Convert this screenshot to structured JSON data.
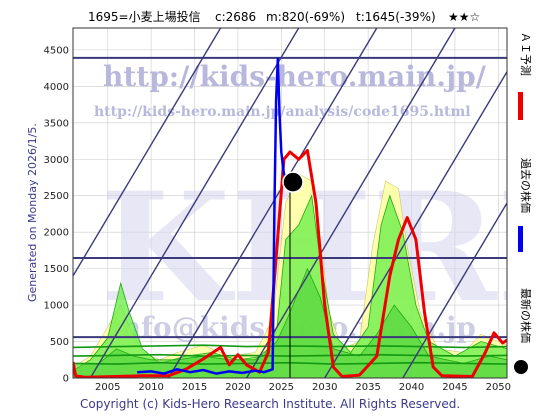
{
  "header": {
    "title": "1695=小麦上場投信",
    "current_price": "c:2686",
    "middle": "m:820(-69%)",
    "target": "t:1645(-39%)",
    "rating": "★★☆"
  },
  "side_note": "Generated on Monday 2026/1/5.",
  "footer": "Copyright (c) Kids-Hero Research Institute. All Rights Reserved.",
  "watermark": {
    "url": "http://kids-hero.main.jp/",
    "path": "http://kids-hero.main.jp/analysis/code1695.html",
    "big": "KHRI",
    "mail": "info@kids-hero.main.jp"
  },
  "legend": [
    {
      "label": "ＡＩ予測",
      "color": "#ee0000",
      "icon": "red-line-icon"
    },
    {
      "label": "過去の株価",
      "color": "#0000ee",
      "icon": "blue-line-icon"
    },
    {
      "label": "最新の株価",
      "color": "#000000",
      "icon": "black-dot-icon"
    }
  ],
  "colors": {
    "frame": "#333333",
    "forecast": "#ee0000",
    "history": "#0000ee",
    "diagonal": "#3a3a7a",
    "level_line": "#3a3a7a",
    "yellow_fill": "#ffffa0",
    "green_fill": "#66ee44",
    "green_line": "#22aa11"
  },
  "chart_data": {
    "type": "line",
    "title": "",
    "xlabel": "",
    "ylabel": "",
    "xlim": [
      2001,
      2051
    ],
    "ylim": [
      0,
      4800
    ],
    "x_ticks": [
      "2005",
      "2010",
      "2015",
      "2020",
      "2025",
      "2030",
      "2035",
      "2040",
      "2045",
      "2050"
    ],
    "y_ticks": [
      "0",
      "500",
      "1000",
      "1500",
      "2000",
      "2500",
      "3000",
      "3500",
      "4000",
      "4500"
    ],
    "horizontal_levels": [
      4390,
      1645,
      560
    ],
    "latest_point": {
      "x": 2026.0,
      "y": 2686
    },
    "vertical_marker_x": 2026.0,
    "diagonal_lines_x0": [
      1994,
      2003,
      2012,
      2021,
      2030,
      2039
    ],
    "series": [
      {
        "name": "過去の株価",
        "points": [
          [
            2008.4,
            80
          ],
          [
            2010,
            90
          ],
          [
            2011.5,
            60
          ],
          [
            2013,
            120
          ],
          [
            2014.5,
            80
          ],
          [
            2016,
            110
          ],
          [
            2017.5,
            60
          ],
          [
            2019,
            90
          ],
          [
            2020.5,
            70
          ],
          [
            2022,
            100
          ],
          [
            2023,
            80
          ],
          [
            2024.0,
            120
          ],
          [
            2024.2,
            2300
          ],
          [
            2024.4,
            3800
          ],
          [
            2024.6,
            4380
          ],
          [
            2024.8,
            3600
          ],
          [
            2025.0,
            3100
          ],
          [
            2025.3,
            2800
          ],
          [
            2025.6,
            2750
          ],
          [
            2026.0,
            2686
          ]
        ]
      },
      {
        "name": "ＡＩ予測",
        "points": [
          [
            2001,
            220
          ],
          [
            2001.3,
            30
          ],
          [
            2002.5,
            10
          ],
          [
            2006,
            20
          ],
          [
            2009,
            30
          ],
          [
            2012,
            30
          ],
          [
            2014,
            120
          ],
          [
            2016,
            260
          ],
          [
            2018,
            420
          ],
          [
            2019,
            180
          ],
          [
            2020,
            320
          ],
          [
            2021,
            180
          ],
          [
            2022.5,
            80
          ],
          [
            2023.5,
            350
          ],
          [
            2024.5,
            1800
          ],
          [
            2025.3,
            3000
          ],
          [
            2026.0,
            3100
          ],
          [
            2027,
            3000
          ],
          [
            2028,
            3120
          ],
          [
            2029,
            2400
          ],
          [
            2030,
            1000
          ],
          [
            2031,
            150
          ],
          [
            2032,
            20
          ],
          [
            2034,
            40
          ],
          [
            2036,
            300
          ],
          [
            2037.5,
            1400
          ],
          [
            2038.5,
            1900
          ],
          [
            2039.5,
            2200
          ],
          [
            2040.5,
            1900
          ],
          [
            2041.5,
            900
          ],
          [
            2042.5,
            150
          ],
          [
            2043.5,
            30
          ],
          [
            2047,
            20
          ],
          [
            2048.5,
            350
          ],
          [
            2049.5,
            620
          ],
          [
            2050.5,
            480
          ],
          [
            2051,
            520
          ]
        ]
      },
      {
        "name": "",
        "points": [
          [
            2001,
            150
          ],
          [
            2003,
            300
          ],
          [
            2005,
            700
          ],
          [
            2006.5,
            1000
          ],
          [
            2007.5,
            700
          ],
          [
            2009,
            350
          ],
          [
            2011,
            250
          ],
          [
            2013,
            350
          ],
          [
            2016,
            450
          ],
          [
            2019,
            300
          ],
          [
            2022,
            350
          ],
          [
            2024,
            800
          ],
          [
            2025.5,
            2400
          ],
          [
            2027,
            2800
          ],
          [
            2028.5,
            2700
          ],
          [
            2029.5,
            1900
          ],
          [
            2030.5,
            900
          ],
          [
            2032,
            400
          ],
          [
            2034,
            500
          ],
          [
            2035.5,
            1800
          ],
          [
            2037,
            2700
          ],
          [
            2038.5,
            2600
          ],
          [
            2039.5,
            1800
          ],
          [
            2041,
            900
          ],
          [
            2043,
            400
          ],
          [
            2046,
            350
          ],
          [
            2048,
            600
          ],
          [
            2050,
            500
          ],
          [
            2051,
            450
          ]
        ]
      },
      {
        "name": "",
        "points": [
          [
            2001,
            100
          ],
          [
            2003,
            250
          ],
          [
            2005,
            550
          ],
          [
            2006.5,
            1300
          ],
          [
            2007.5,
            900
          ],
          [
            2009,
            400
          ],
          [
            2011,
            200
          ],
          [
            2014,
            300
          ],
          [
            2017,
            350
          ],
          [
            2020,
            250
          ],
          [
            2023,
            300
          ],
          [
            2024.5,
            700
          ],
          [
            2025.5,
            1900
          ],
          [
            2027,
            2100
          ],
          [
            2028.5,
            2500
          ],
          [
            2029.5,
            1600
          ],
          [
            2031,
            600
          ],
          [
            2033,
            350
          ],
          [
            2035,
            700
          ],
          [
            2036.5,
            2100
          ],
          [
            2037.5,
            2500
          ],
          [
            2039,
            2000
          ],
          [
            2040.5,
            1000
          ],
          [
            2042,
            500
          ],
          [
            2045,
            300
          ],
          [
            2048,
            500
          ],
          [
            2051,
            400
          ]
        ]
      },
      {
        "name": "",
        "points": [
          [
            2001,
            200
          ],
          [
            2004,
            200
          ],
          [
            2006,
            400
          ],
          [
            2008,
            300
          ],
          [
            2010,
            250
          ],
          [
            2013,
            250
          ],
          [
            2016,
            300
          ],
          [
            2019,
            250
          ],
          [
            2022,
            250
          ],
          [
            2024.5,
            500
          ],
          [
            2026,
            900
          ],
          [
            2028,
            1500
          ],
          [
            2029.5,
            1100
          ],
          [
            2031,
            400
          ],
          [
            2034,
            300
          ],
          [
            2036,
            600
          ],
          [
            2038,
            1000
          ],
          [
            2040,
            700
          ],
          [
            2042,
            300
          ],
          [
            2046,
            200
          ],
          [
            2049,
            300
          ],
          [
            2051,
            250
          ]
        ]
      },
      {
        "name": "",
        "points": [
          [
            2001,
            420
          ],
          [
            2006,
            430
          ],
          [
            2011,
            440
          ],
          [
            2016,
            450
          ],
          [
            2021,
            430
          ],
          [
            2026,
            440
          ],
          [
            2031,
            430
          ],
          [
            2036,
            440
          ],
          [
            2041,
            430
          ],
          [
            2046,
            420
          ],
          [
            2051,
            430
          ]
        ]
      },
      {
        "name": "",
        "points": [
          [
            2001,
            300
          ],
          [
            2006,
            310
          ],
          [
            2011,
            320
          ],
          [
            2016,
            300
          ],
          [
            2021,
            310
          ],
          [
            2026,
            300
          ],
          [
            2031,
            310
          ],
          [
            2036,
            320
          ],
          [
            2041,
            310
          ],
          [
            2046,
            300
          ],
          [
            2051,
            310
          ]
        ]
      },
      {
        "name": "",
        "points": [
          [
            2001,
            200
          ],
          [
            2006,
            190
          ],
          [
            2011,
            210
          ],
          [
            2016,
            190
          ],
          [
            2021,
            200
          ],
          [
            2026,
            210
          ],
          [
            2031,
            190
          ],
          [
            2036,
            200
          ],
          [
            2041,
            210
          ],
          [
            2046,
            200
          ],
          [
            2051,
            190
          ]
        ]
      }
    ]
  }
}
